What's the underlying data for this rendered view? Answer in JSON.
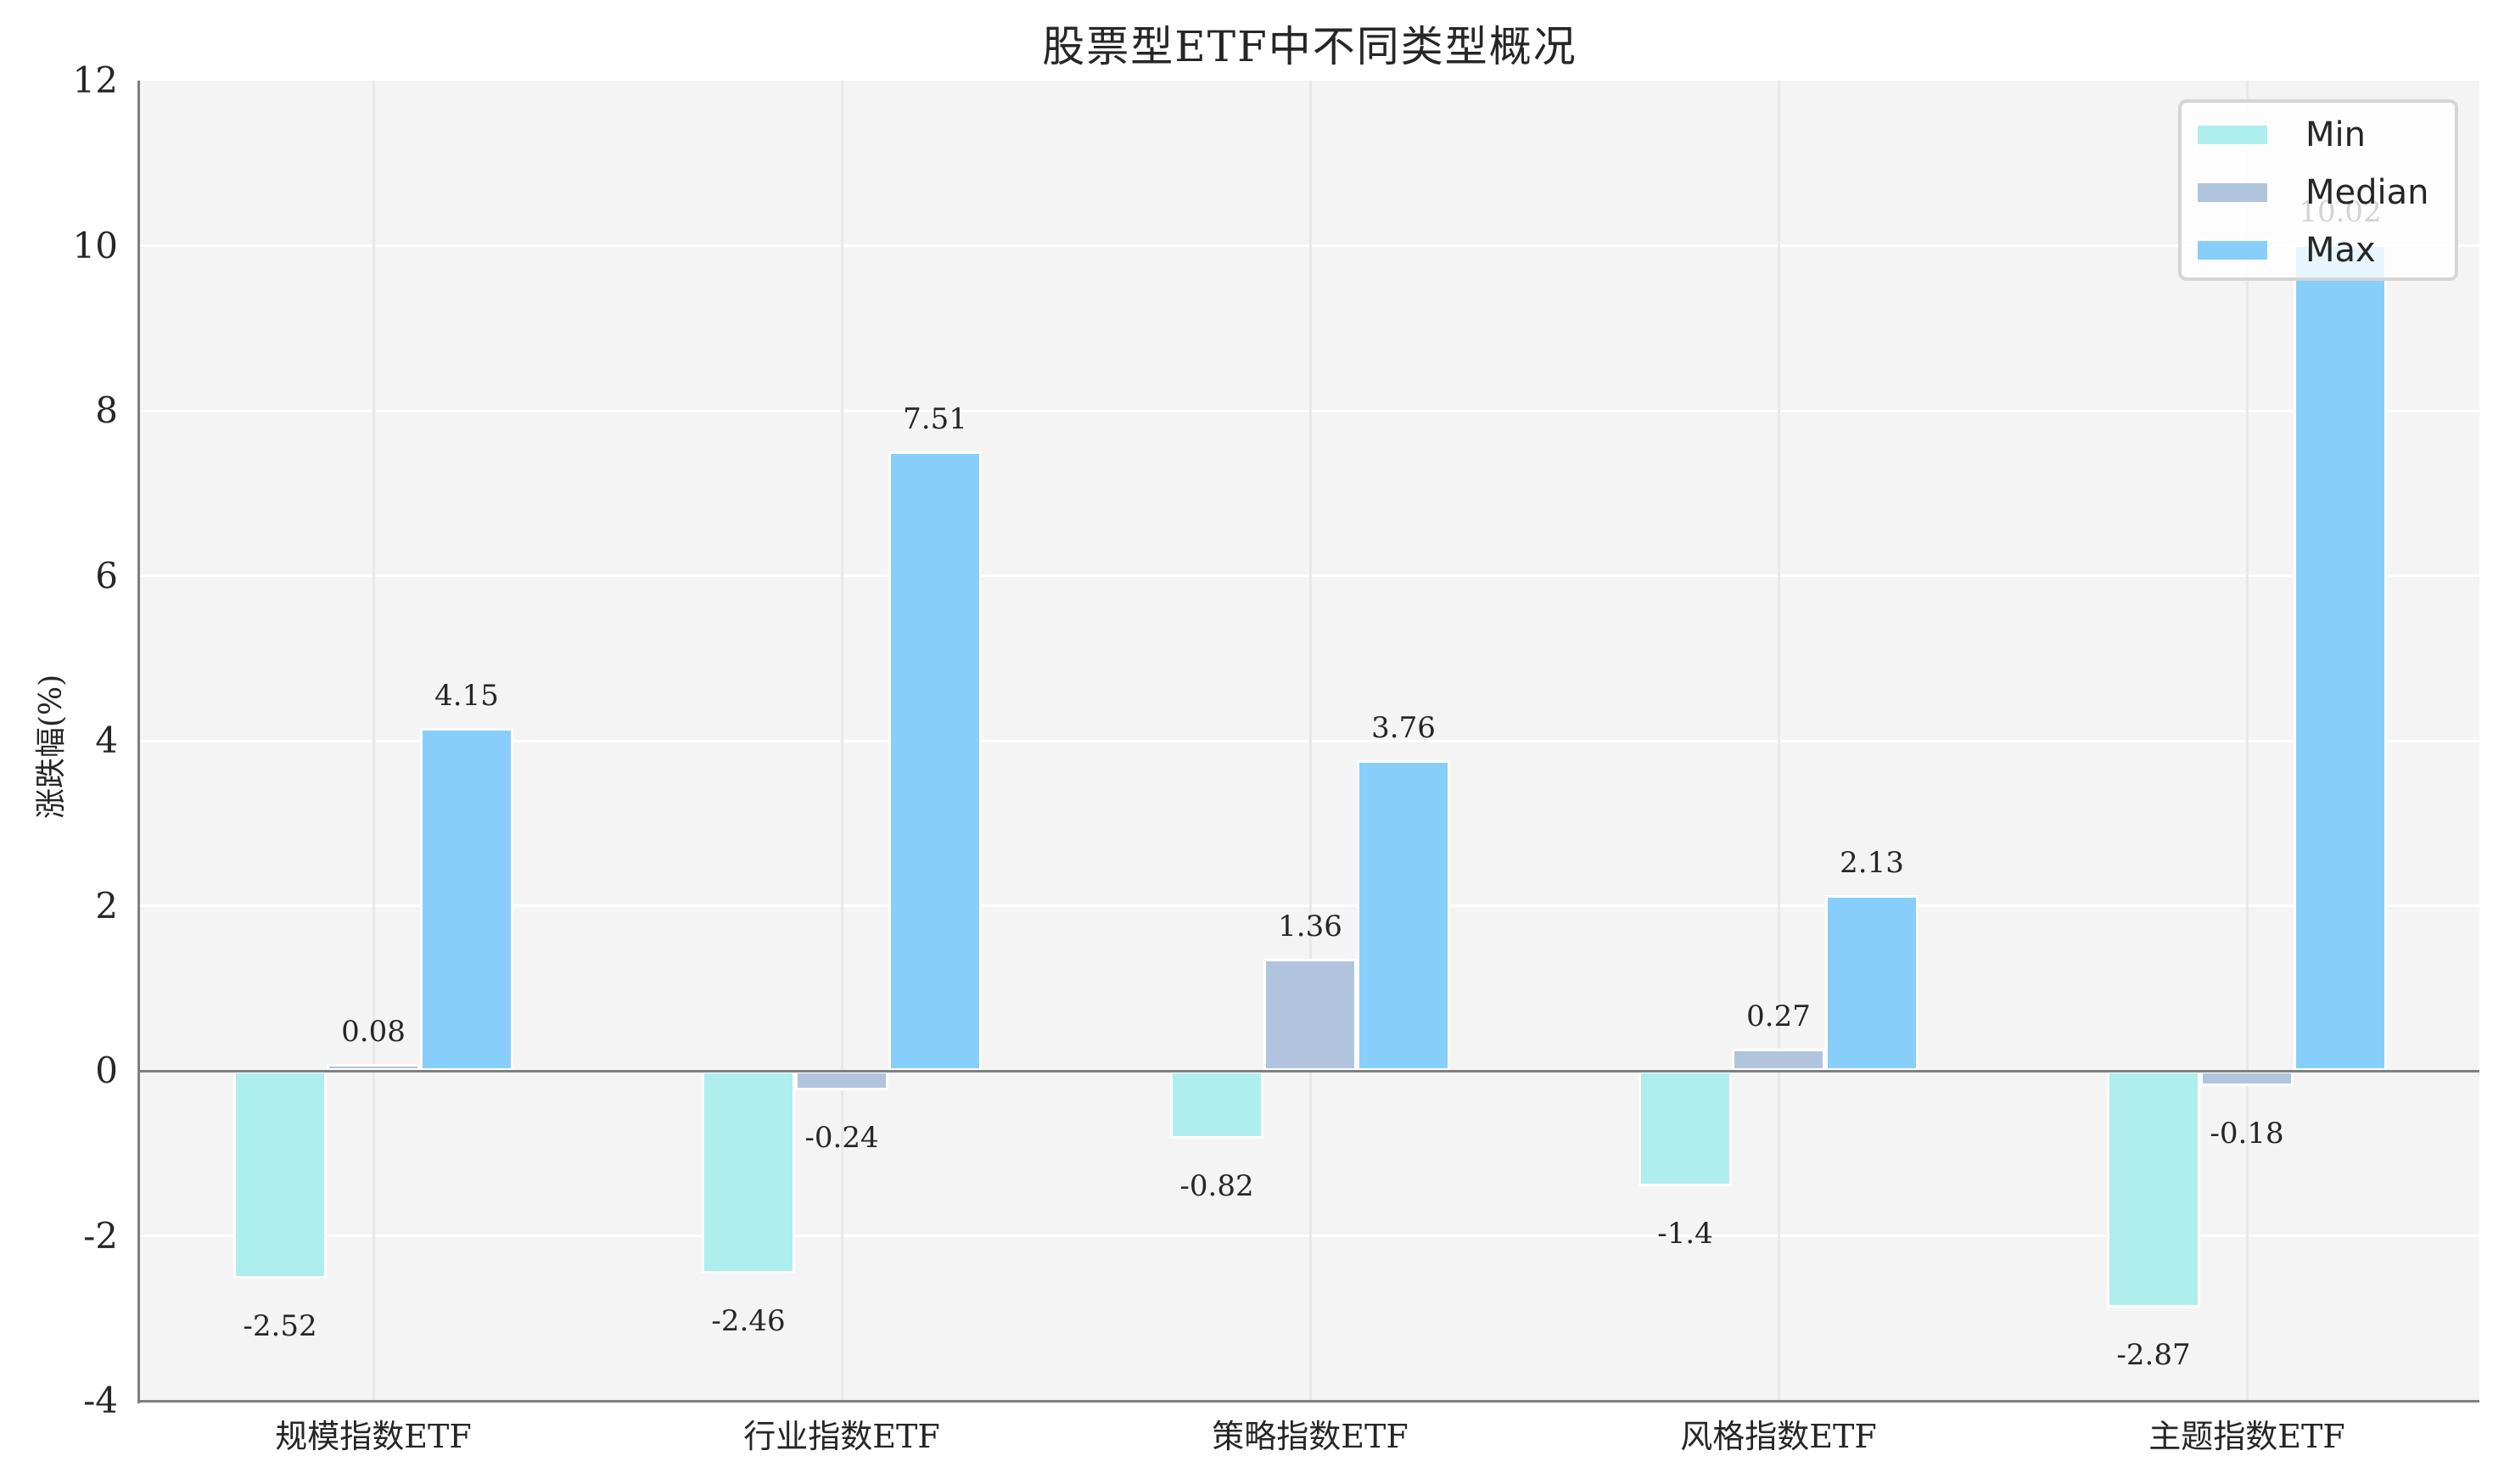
{
  "chart_data": {
    "type": "bar",
    "title": "股票型ETF中不同类型概况",
    "xlabel": "",
    "ylabel": "涨跌幅(%)",
    "ylim": [
      -4,
      12
    ],
    "yticks": [
      -4,
      -2,
      0,
      2,
      4,
      6,
      8,
      10,
      12
    ],
    "ytick_labels": [
      "-4",
      "-2",
      "0",
      "2",
      "4",
      "6",
      "8",
      "10",
      "12"
    ],
    "grid": true,
    "legend_position": "upper right",
    "categories": [
      "规模指数ETF",
      "行业指数ETF",
      "策略指数ETF",
      "风格指数ETF",
      "主题指数ETF"
    ],
    "series": [
      {
        "name": "Min",
        "color": "#afeeee",
        "values": [
          -2.52,
          -2.46,
          -0.82,
          -1.4,
          -2.87
        ],
        "labels": [
          "-2.52",
          "-2.46",
          "-0.82",
          "-1.4",
          "-2.87"
        ]
      },
      {
        "name": "Median",
        "color": "#b0c4de",
        "values": [
          0.08,
          -0.24,
          1.36,
          0.27,
          -0.18
        ],
        "labels": [
          "0.08",
          "-0.24",
          "1.36",
          "0.27",
          "-0.18"
        ]
      },
      {
        "name": "Max",
        "color": "#87cefa",
        "values": [
          4.15,
          7.51,
          3.76,
          2.13,
          10.02
        ],
        "labels": [
          "4.15",
          "7.51",
          "3.76",
          "2.13",
          "10.02"
        ]
      }
    ]
  },
  "legend": {
    "items": [
      {
        "label": "Min",
        "color": "#afeeee"
      },
      {
        "label": "Median",
        "color": "#b0c4de"
      },
      {
        "label": "Max",
        "color": "#87cefa"
      }
    ]
  },
  "colors": {
    "plot_background": "#f4f4f4",
    "grid": "#ffffff",
    "axis": "#7f7f7f"
  }
}
